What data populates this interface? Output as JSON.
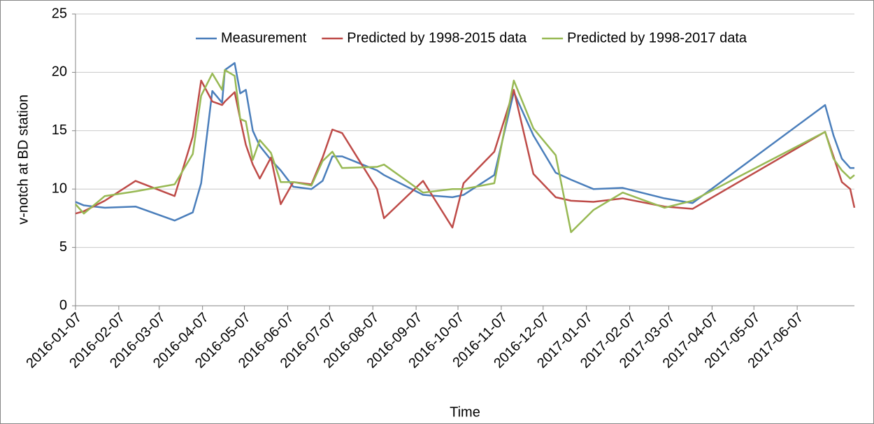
{
  "chart_data": {
    "type": "line",
    "x_label": "Time",
    "y_label": "v-notch at BD station",
    "x": [
      "2016-01-07",
      "2016-01-13",
      "2016-01-28",
      "2016-02-19",
      "2016-03-18",
      "2016-03-31",
      "2016-04-06",
      "2016-04-14",
      "2016-04-21",
      "2016-04-23",
      "2016-04-30",
      "2016-05-04",
      "2016-05-08",
      "2016-05-13",
      "2016-05-18",
      "2016-05-26",
      "2016-06-02",
      "2016-06-11",
      "2016-06-24",
      "2016-07-02",
      "2016-07-09",
      "2016-07-16",
      "2016-08-10",
      "2016-08-15",
      "2016-09-12",
      "2016-10-03",
      "2016-10-11",
      "2016-11-02",
      "2016-11-16",
      "2016-11-30",
      "2016-12-16",
      "2016-12-27",
      "2017-01-12",
      "2017-02-02",
      "2017-03-04",
      "2017-03-24",
      "2017-06-27",
      "2017-07-03",
      "2017-07-09",
      "2017-07-15",
      "2017-07-18"
    ],
    "series": [
      {
        "name": "Measurement",
        "color": "#4a7ebb",
        "values": [
          8.9,
          8.6,
          8.4,
          8.5,
          7.3,
          8.0,
          10.5,
          18.4,
          17.4,
          20.2,
          20.8,
          18.2,
          18.5,
          15.0,
          13.7,
          12.5,
          11.6,
          10.2,
          10.0,
          10.7,
          12.8,
          12.8,
          11.6,
          11.2,
          9.5,
          9.3,
          9.5,
          11.2,
          18.3,
          14.6,
          11.4,
          10.8,
          10.0,
          10.1,
          9.2,
          8.8,
          17.2,
          14.6,
          12.6,
          11.8,
          11.8
        ]
      },
      {
        "name": "Predicted by 1998-2015 data",
        "color": "#be4b48",
        "values": [
          7.9,
          8.1,
          9.0,
          10.7,
          9.4,
          14.5,
          19.3,
          17.5,
          17.2,
          17.5,
          18.3,
          16.0,
          13.8,
          12.1,
          10.9,
          12.7,
          8.7,
          10.6,
          10.4,
          12.7,
          15.1,
          14.8,
          10.0,
          7.5,
          10.7,
          6.7,
          10.5,
          13.2,
          18.5,
          11.3,
          9.3,
          9.0,
          8.9,
          9.2,
          8.5,
          8.3,
          14.9,
          12.8,
          10.6,
          10.0,
          8.4
        ]
      },
      {
        "name": "Predicted by 1998-2017 data",
        "color": "#98b954",
        "values": [
          8.7,
          7.9,
          9.4,
          9.8,
          10.4,
          13.0,
          18.0,
          19.9,
          18.5,
          20.2,
          19.7,
          16.0,
          15.8,
          12.5,
          14.2,
          13.1,
          10.6,
          10.6,
          10.3,
          12.4,
          13.2,
          11.8,
          11.9,
          12.1,
          9.7,
          10.0,
          10.0,
          10.5,
          19.3,
          15.2,
          12.9,
          6.3,
          8.2,
          9.7,
          8.4,
          9.0,
          14.9,
          12.6,
          11.6,
          10.9,
          11.2
        ]
      }
    ],
    "xlim": [
      "2016-01-07",
      "2017-07-18"
    ],
    "xticks": [
      "2016-01-07",
      "2016-02-07",
      "2016-03-07",
      "2016-04-07",
      "2016-05-07",
      "2016-06-07",
      "2016-07-07",
      "2016-08-07",
      "2016-09-07",
      "2016-10-07",
      "2016-11-07",
      "2016-12-07",
      "2017-01-07",
      "2017-02-07",
      "2017-03-07",
      "2017-04-07",
      "2017-05-07",
      "2017-06-07"
    ],
    "ylim": [
      0,
      25
    ],
    "yticks": [
      0,
      5,
      10,
      15,
      20,
      25
    ],
    "grid": true,
    "legend": "top"
  }
}
